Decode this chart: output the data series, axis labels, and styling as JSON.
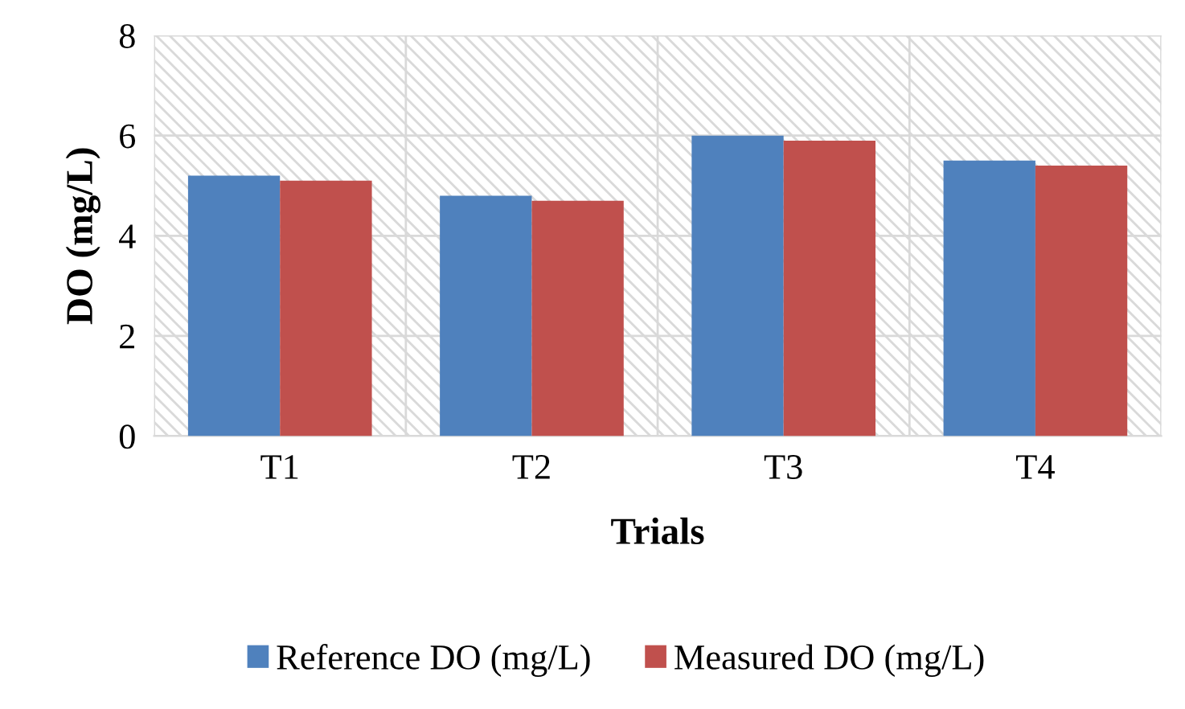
{
  "chart_data": {
    "type": "bar",
    "xlabel": "Trials",
    "ylabel": "DO (mg/L)",
    "categories": [
      "T1",
      "T2",
      "T3",
      "T4"
    ],
    "series": [
      {
        "name": "Reference DO (mg/L)",
        "color": "#4f81bd",
        "values": [
          5.2,
          4.8,
          6.0,
          5.5
        ]
      },
      {
        "name": "Measured DO (mg/L)",
        "color": "#c0504d",
        "values": [
          5.1,
          4.7,
          5.9,
          5.4
        ]
      }
    ],
    "ylim": [
      0,
      8
    ],
    "yticks": [
      0,
      2,
      4,
      6,
      8
    ],
    "grid": true,
    "legend": "bottom"
  }
}
